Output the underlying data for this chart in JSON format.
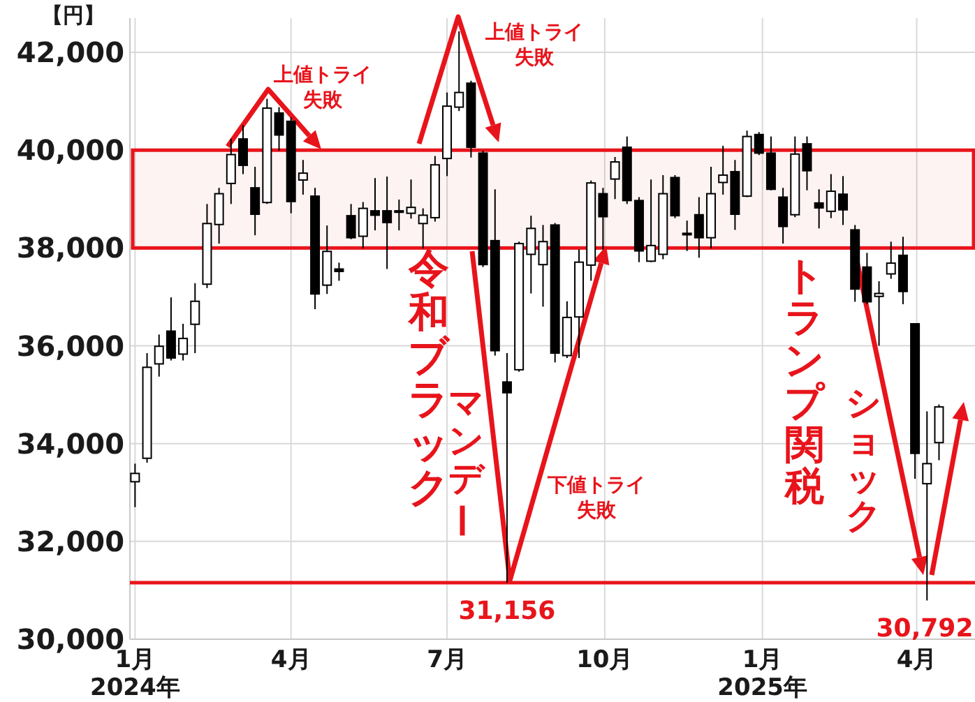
{
  "chart_data": {
    "type": "candlestick",
    "ylabel": "【円】",
    "color": "#000000",
    "grid": true,
    "x": [
      "2024-01-01",
      "2024-01-08",
      "2024-01-15",
      "2024-01-22",
      "2024-01-29",
      "2024-02-05",
      "2024-02-12",
      "2024-02-19",
      "2024-02-26",
      "2024-03-04",
      "2024-03-11",
      "2024-03-18",
      "2024-03-25",
      "2024-04-01",
      "2024-04-08",
      "2024-04-15",
      "2024-04-22",
      "2024-04-29",
      "2024-05-06",
      "2024-05-13",
      "2024-05-20",
      "2024-05-27",
      "2024-06-03",
      "2024-06-10",
      "2024-06-17",
      "2024-06-24",
      "2024-07-01",
      "2024-07-08",
      "2024-07-15",
      "2024-07-22",
      "2024-07-29",
      "2024-08-05",
      "2024-08-12",
      "2024-08-19",
      "2024-08-26",
      "2024-09-02",
      "2024-09-09",
      "2024-09-16",
      "2024-09-23",
      "2024-09-30",
      "2024-10-07",
      "2024-10-14",
      "2024-10-21",
      "2024-10-28",
      "2024-11-04",
      "2024-11-11",
      "2024-11-18",
      "2024-11-25",
      "2024-12-02",
      "2024-12-09",
      "2024-12-16",
      "2024-12-23",
      "2024-12-30",
      "2025-01-06",
      "2025-01-13",
      "2025-01-20",
      "2025-01-27",
      "2025-02-03",
      "2025-02-10",
      "2025-02-17",
      "2025-02-24",
      "2025-03-03",
      "2025-03-10",
      "2025-03-17",
      "2025-03-24",
      "2025-03-31",
      "2025-04-07",
      "2025-04-14"
    ],
    "ohlc": [
      [
        33220,
        33590,
        32700,
        33390
      ],
      [
        33700,
        35850,
        33610,
        35560
      ],
      [
        35630,
        36230,
        35370,
        35990
      ],
      [
        36300,
        36990,
        35700,
        35750
      ],
      [
        35830,
        36450,
        35700,
        36150
      ],
      [
        36440,
        37280,
        35850,
        36910
      ],
      [
        37260,
        38900,
        37180,
        38500
      ],
      [
        38480,
        39230,
        38090,
        39110
      ],
      [
        39320,
        40230,
        38900,
        39910
      ],
      [
        40230,
        40510,
        39510,
        39690
      ],
      [
        39230,
        39660,
        38260,
        38690
      ],
      [
        38930,
        41050,
        38900,
        40860
      ],
      [
        40760,
        40880,
        39990,
        40310
      ],
      [
        40590,
        40670,
        38710,
        38950
      ],
      [
        39390,
        39800,
        39090,
        39530
      ],
      [
        39060,
        39230,
        36750,
        37060
      ],
      [
        37240,
        38460,
        37060,
        37930
      ],
      [
        37570,
        37700,
        37330,
        37520
      ],
      [
        38660,
        38900,
        38180,
        38210
      ],
      [
        38240,
        38940,
        37990,
        38810
      ],
      [
        38760,
        39430,
        38360,
        38670
      ],
      [
        38760,
        39460,
        37570,
        38520
      ],
      [
        38760,
        38990,
        38360,
        38730
      ],
      [
        38710,
        39400,
        38600,
        38830
      ],
      [
        38500,
        38810,
        37990,
        38670
      ],
      [
        38620,
        39880,
        38540,
        39700
      ],
      [
        39830,
        41180,
        39470,
        40900
      ],
      [
        40880,
        42430,
        40800,
        41180
      ],
      [
        41370,
        41420,
        39850,
        40060
      ],
      [
        39940,
        39990,
        37610,
        37660
      ],
      [
        38150,
        39200,
        35800,
        35900
      ],
      [
        35260,
        35850,
        31156,
        35040
      ],
      [
        35510,
        38130,
        35470,
        38090
      ],
      [
        37870,
        38660,
        37070,
        38400
      ],
      [
        37660,
        38470,
        36800,
        38130
      ],
      [
        38470,
        38510,
        35660,
        35850
      ],
      [
        35800,
        36910,
        35750,
        36580
      ],
      [
        36590,
        37970,
        35750,
        37710
      ],
      [
        37650,
        39380,
        37330,
        39330
      ],
      [
        39110,
        39230,
        37970,
        38640
      ],
      [
        39410,
        39860,
        39000,
        39760
      ],
      [
        40060,
        40280,
        38900,
        38970
      ],
      [
        38970,
        39040,
        37710,
        37940
      ],
      [
        37730,
        39400,
        37710,
        38050
      ],
      [
        37870,
        39490,
        37770,
        39110
      ],
      [
        39440,
        39490,
        38610,
        38660
      ],
      [
        38300,
        38560,
        37940,
        38270
      ],
      [
        38680,
        39040,
        37800,
        38210
      ],
      [
        38210,
        39660,
        37990,
        39110
      ],
      [
        39340,
        40090,
        39090,
        39490
      ],
      [
        39560,
        39800,
        38370,
        38690
      ],
      [
        39060,
        40400,
        39040,
        40280
      ],
      [
        40320,
        40370,
        39900,
        39940
      ],
      [
        39940,
        40280,
        39180,
        39200
      ],
      [
        39040,
        39230,
        38090,
        38440
      ],
      [
        38680,
        40280,
        38630,
        39920
      ],
      [
        40130,
        40280,
        39180,
        39580
      ],
      [
        38920,
        39200,
        38400,
        38820
      ],
      [
        38750,
        39510,
        38610,
        39160
      ],
      [
        39100,
        39470,
        38470,
        38780
      ],
      [
        38370,
        38470,
        36900,
        37160
      ],
      [
        37610,
        37900,
        36850,
        36900
      ],
      [
        37010,
        37320,
        36000,
        37070
      ],
      [
        37470,
        38130,
        37370,
        37690
      ],
      [
        37850,
        38230,
        36850,
        37110
      ],
      [
        36450,
        36450,
        33280,
        33800
      ],
      [
        33180,
        34660,
        30792,
        33590
      ],
      [
        34020,
        34800,
        33660,
        34750
      ]
    ],
    "xlim": [
      "2023-12-29",
      "2025-05-05"
    ],
    "xticks": [
      {
        "value": "2024-01-01",
        "label": "1月\n2024年"
      },
      {
        "value": "2024-04-01",
        "label": "4月"
      },
      {
        "value": "2024-07-01",
        "label": "7月"
      },
      {
        "value": "2024-10-01",
        "label": "10月"
      },
      {
        "value": "2025-01-01",
        "label": "1月\n2025年"
      },
      {
        "value": "2025-04-01",
        "label": "4月"
      }
    ],
    "ylim": [
      30000,
      42700
    ],
    "yticks": [
      {
        "value": 30000,
        "label": "30,000"
      },
      {
        "value": 32000,
        "label": "32,000"
      },
      {
        "value": 34000,
        "label": "34,000"
      },
      {
        "value": 36000,
        "label": "36,000"
      },
      {
        "value": 38000,
        "label": "38,000"
      },
      {
        "value": 40000,
        "label": "40,000"
      },
      {
        "value": 42000,
        "label": "42,000"
      }
    ],
    "bands": [
      {
        "axis": "y",
        "from": 38000,
        "to": 40000,
        "color": "#e8141b"
      }
    ],
    "ref_lines": [
      {
        "axis": "y",
        "value": 31156,
        "color": "#e8141b"
      }
    ],
    "annotations": [
      {
        "text": "上値トライ失敗",
        "x": "2024-03-18",
        "y": 41050
      },
      {
        "text": "上値トライ失敗",
        "x": "2024-07-08",
        "y": 42430
      },
      "令和ブラック",
      "マンデー",
      "下値トライ失敗",
      "トランプ関税",
      {
        "text": "ショック",
        "x": "2025-04-07",
        "y": 30792
      },
      {
        "text": "31,156",
        "x": "2024-08-05",
        "y": 31156
      },
      {
        "text": "30,792",
        "x": "2025-04-07",
        "y": 30792
      }
    ]
  }
}
